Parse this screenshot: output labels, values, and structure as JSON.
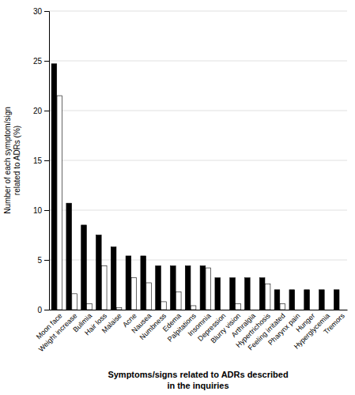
{
  "chart_data": {
    "type": "bar",
    "categories": [
      "Moon face",
      "Weight increase",
      "Bulimia",
      "Hair loss",
      "Malaise",
      "Acne",
      "Nausea",
      "Numbness",
      "Edema",
      "Palpitations",
      "Insomnia",
      "Depression",
      "Blurry vision",
      "Arthralgia",
      "Hypertrichosis",
      "Feeling irritated",
      "Pharynx pain",
      "Hunger",
      "Hyperglycemia",
      "Tremors"
    ],
    "series": [
      {
        "color": "#000000",
        "values": [
          24.7,
          10.7,
          8.5,
          7.5,
          6.3,
          5.4,
          5.4,
          4.4,
          4.4,
          4.4,
          4.4,
          3.2,
          3.2,
          3.2,
          3.2,
          2.0,
          2.0,
          2.0,
          2.0,
          2.0
        ]
      },
      {
        "color": "#ffffff",
        "values": [
          21.5,
          1.6,
          0.6,
          4.4,
          0.2,
          3.2,
          2.7,
          0.8,
          1.8,
          0.4,
          4.2,
          0.0,
          0.6,
          0.0,
          2.6,
          0.6,
          0.0,
          0.0,
          0.0,
          0.0
        ]
      }
    ],
    "ylabel": "Number of each symptom/sign\n related to ADRs (%)",
    "xlabel": "Symptoms/signs related to ADRs described\nin the inquiries",
    "ylim": [
      0,
      30
    ],
    "yticks": [
      0,
      5,
      10,
      15,
      20,
      25,
      30
    ],
    "grid": true
  }
}
